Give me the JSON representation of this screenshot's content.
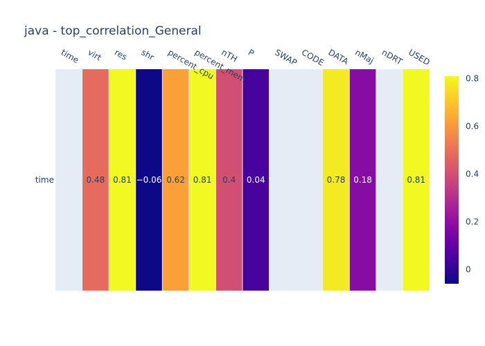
{
  "chart_data": {
    "type": "heatmap",
    "title": "java - top_correlation_General",
    "x_categories": [
      "time",
      "virt",
      "res",
      "shr",
      "percent_cpu",
      "percent_mem",
      "nTH",
      "P",
      "SWAP",
      "CODE",
      "DATA",
      "nMaj",
      "nDRT",
      "USED"
    ],
    "y_categories": [
      "time"
    ],
    "values": [
      [
        null,
        0.48,
        0.81,
        -0.06,
        0.62,
        0.81,
        0.4,
        0.04,
        null,
        null,
        0.78,
        0.18,
        null,
        0.81
      ]
    ],
    "cell_labels": [
      "",
      "0.48",
      "0.81",
      "−0.06",
      "0.62",
      "0.81",
      "0.4",
      "0.04",
      "",
      "",
      "0.78",
      "0.18",
      "",
      "0.81"
    ],
    "colorscale": "plasma",
    "zmin": -0.06,
    "zmax": 0.81,
    "colorbar_ticks": [
      0,
      0.2,
      0.4,
      0.6,
      0.8
    ],
    "colorbar_tick_labels": [
      "0",
      "0.2",
      "0.4",
      "0.6",
      "0.8"
    ],
    "missing_cell_color": "#e5ecf6",
    "text_color": "#2a3f5f"
  }
}
